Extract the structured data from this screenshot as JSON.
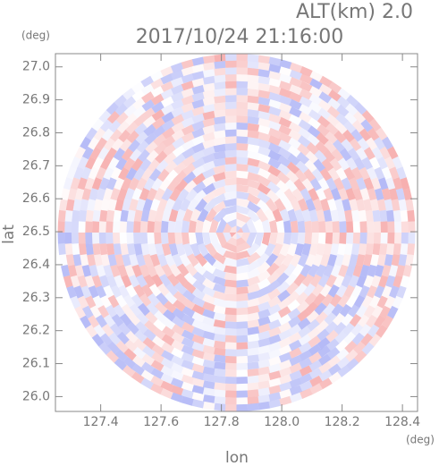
{
  "chart_data": {
    "type": "radar-ppi",
    "title": "2017/10/24 21:16:00",
    "subtitle": "ALT(km) 2.0",
    "x_label": "lon",
    "y_label": "lat",
    "x_unit": "(deg)",
    "y_unit": "(deg)",
    "xlim": [
      127.25,
      128.45
    ],
    "ylim": [
      25.955,
      27.04
    ],
    "xticks": [
      127.4,
      127.6,
      127.8,
      {
        "value": 128.0,
        "label": "128.0"
      },
      128.2,
      128.4
    ],
    "yticks": [
      {
        "value": 26.0,
        "label": "26.0"
      },
      26.1,
      26.2,
      26.3,
      26.4,
      26.5,
      26.6,
      26.7,
      26.8,
      26.9,
      {
        "value": 27.0,
        "label": "27.0"
      }
    ]
  }
}
